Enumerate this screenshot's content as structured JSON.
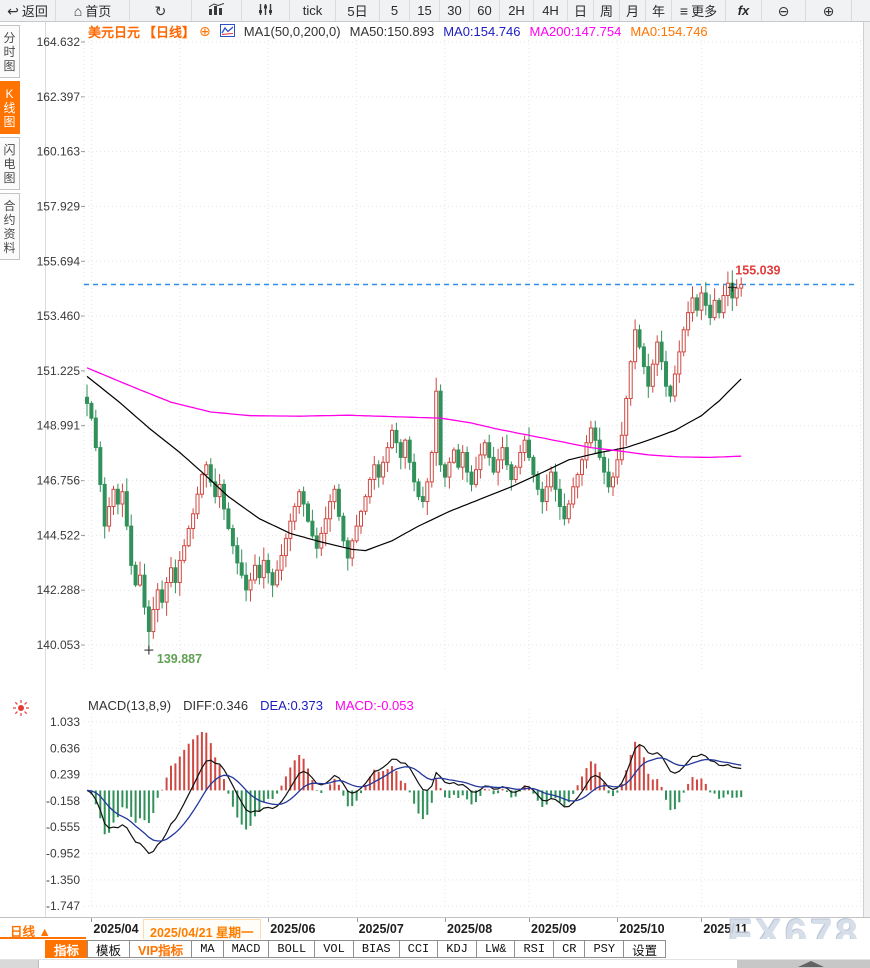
{
  "icons": {
    "back": "↩",
    "home": "⌂",
    "refresh": "↻",
    "more": "≡",
    "zoom_out": "⊖",
    "zoom_in": "⊕",
    "add": "⊕",
    "dropdown_arrow": "▲"
  },
  "topbar": {
    "items": [
      {
        "name": "tool-back",
        "icon": "back",
        "label": "返回"
      },
      {
        "name": "tool-home",
        "icon": "home",
        "label": "首页"
      },
      {
        "name": "tool-refresh",
        "icon": "refresh",
        "label": ""
      },
      {
        "name": "tool-chart-style",
        "icon": "chart",
        "label": ""
      },
      {
        "name": "tool-indicator-settings",
        "icon": "sliders",
        "label": ""
      },
      {
        "name": "period-tick",
        "label": "tick"
      },
      {
        "name": "period-5day",
        "label": "5日"
      },
      {
        "name": "period-5min",
        "label": "5"
      },
      {
        "name": "period-15min",
        "label": "15"
      },
      {
        "name": "period-30min",
        "label": "30"
      },
      {
        "name": "period-60min",
        "label": "60"
      },
      {
        "name": "period-2h",
        "label": "2H"
      },
      {
        "name": "period-4h",
        "label": "4H"
      },
      {
        "name": "period-day",
        "label": "日"
      },
      {
        "name": "period-week",
        "label": "周"
      },
      {
        "name": "period-month",
        "label": "月"
      },
      {
        "name": "period-year",
        "label": "年"
      },
      {
        "name": "tool-more",
        "icon": "more",
        "label": "更多"
      },
      {
        "name": "tool-fx",
        "label": "fx"
      },
      {
        "name": "tool-zoom-out",
        "icon": "zoom_out",
        "label": ""
      },
      {
        "name": "tool-zoom-in",
        "icon": "zoom_in",
        "label": ""
      }
    ]
  },
  "sidebar": {
    "tabs": [
      {
        "name": "tab-time-chart",
        "label": "分时图",
        "active": false
      },
      {
        "name": "tab-kline-chart",
        "label": "K线图",
        "active": true
      },
      {
        "name": "tab-lightning-chart",
        "label": "闪电图",
        "active": false
      },
      {
        "name": "tab-contract-info",
        "label": "合约资料",
        "active": false
      }
    ]
  },
  "header": {
    "symbol": "美元日元",
    "period_tag": "【日线】",
    "ma_settings": "MA1(50,0,200,0)",
    "ma50": "MA50:150.893",
    "ma0_blue": "MA0:154.746",
    "ma200": "MA200:147.754",
    "ma0_orange": "MA0:154.746"
  },
  "macd_header": {
    "title": "MACD(13,8,9)",
    "diff": "DIFF:0.346",
    "dea": "DEA:0.373",
    "macd": "MACD:-0.053"
  },
  "bottom": {
    "period_label": "日线",
    "arrow": "▲"
  },
  "indicator_bar": {
    "items": [
      {
        "label": "指标",
        "style": "active"
      },
      {
        "label": "模板",
        "style": ""
      },
      {
        "label": "VIP指标",
        "style": "viptxt"
      },
      {
        "label": "MA",
        "style": "mono"
      },
      {
        "label": "MACD",
        "style": "mono"
      },
      {
        "label": "BOLL",
        "style": "mono"
      },
      {
        "label": "VOL",
        "style": "mono"
      },
      {
        "label": "BIAS",
        "style": "mono"
      },
      {
        "label": "CCI",
        "style": "mono"
      },
      {
        "label": "KDJ",
        "style": "mono"
      },
      {
        "label": "LW&",
        "style": "mono"
      },
      {
        "label": "RSI",
        "style": "mono"
      },
      {
        "label": "CR",
        "style": "mono"
      },
      {
        "label": "PSY",
        "style": "mono"
      },
      {
        "label": "设置",
        "style": ""
      }
    ]
  },
  "watermark": "FX678",
  "colors": {
    "up_candle": "#cf4842",
    "down_candle": "#31915a",
    "ma50_line": "#000000",
    "ma200_line": "#ff00e8",
    "price_line": "#2f8fe8",
    "dea_line": "#24389b",
    "accent_orange": "#ff7300",
    "high_label": "#e23b3b",
    "low_label": "#61a054"
  },
  "chart_data": {
    "type": "candlestick+macd",
    "symbol": "美元日元",
    "period": "日线",
    "y_axis": {
      "labels": [
        "164.632",
        "162.397",
        "160.163",
        "157.929",
        "155.694",
        "153.460",
        "151.225",
        "148.991",
        "146.756",
        "144.522",
        "142.288",
        "140.053"
      ]
    },
    "current_price": 154.746,
    "candles": {
      "first_open": 150.15,
      "closes": [
        149.9,
        149.3,
        148.1,
        146.6,
        144.9,
        145.7,
        146.4,
        145.8,
        146.3,
        144.9,
        143.3,
        142.5,
        142.9,
        141.6,
        140.6,
        141.5,
        142.3,
        141.8,
        142.6,
        143.2,
        142.6,
        143.5,
        144.1,
        144.8,
        145.4,
        146.2,
        147.0,
        147.4,
        146.7,
        146.1,
        146.6,
        145.6,
        144.8,
        144.1,
        143.4,
        142.9,
        142.3,
        142.7,
        143.3,
        142.8,
        143.5,
        143.0,
        142.5,
        143.1,
        143.7,
        144.4,
        145.1,
        145.7,
        146.3,
        145.8,
        145.1,
        144.5,
        144.0,
        144.6,
        145.2,
        145.9,
        146.4,
        145.3,
        144.3,
        143.6,
        144.3,
        144.9,
        145.5,
        146.1,
        146.8,
        147.4,
        146.9,
        147.5,
        148.1,
        148.8,
        148.3,
        147.7,
        148.4,
        147.5,
        146.7,
        146.1,
        145.9,
        146.7,
        147.9,
        150.4,
        147.4,
        146.9,
        147.5,
        148.0,
        147.3,
        147.9,
        147.1,
        146.6,
        147.2,
        147.8,
        148.3,
        147.7,
        147.1,
        147.6,
        148.1,
        147.4,
        146.8,
        147.3,
        147.9,
        148.4,
        147.7,
        147.0,
        146.4,
        145.9,
        146.5,
        147.1,
        146.4,
        145.7,
        145.2,
        145.8,
        146.5,
        147.0,
        147.6,
        148.3,
        148.9,
        148.4,
        147.7,
        147.1,
        146.5,
        146.9,
        147.6,
        148.6,
        150.1,
        151.6,
        152.9,
        152.2,
        151.4,
        150.6,
        151.5,
        152.4,
        151.6,
        150.6,
        150.2,
        151.1,
        152.0,
        152.9,
        153.6,
        154.2,
        153.7,
        154.4,
        153.9,
        153.4,
        154.1,
        153.6,
        154.3,
        154.8,
        154.2,
        154.6,
        154.75
      ],
      "low_marker": {
        "index": 14,
        "price": 139.887,
        "label": "139.887"
      },
      "high_marker": {
        "index": 148,
        "price": 155.039,
        "label": "155.039"
      },
      "spikes": [
        {
          "index": 79,
          "high": 150.95
        }
      ]
    },
    "ma50_anchors": [
      [
        0,
        151.0
      ],
      [
        7,
        150.0
      ],
      [
        14,
        148.9
      ],
      [
        21,
        147.9
      ],
      [
        26,
        147.1
      ],
      [
        32,
        146.1
      ],
      [
        39,
        145.2
      ],
      [
        46,
        144.6
      ],
      [
        53,
        144.25
      ],
      [
        60,
        143.95
      ],
      [
        63,
        143.9
      ],
      [
        69,
        144.3
      ],
      [
        75,
        144.9
      ],
      [
        82,
        145.5
      ],
      [
        89,
        146.0
      ],
      [
        96,
        146.5
      ],
      [
        102,
        147.0
      ],
      [
        109,
        147.6
      ],
      [
        116,
        147.9
      ],
      [
        122,
        148.1
      ],
      [
        127,
        148.4
      ],
      [
        133,
        148.8
      ],
      [
        139,
        149.4
      ],
      [
        143,
        150.0
      ],
      [
        148,
        150.9
      ]
    ],
    "ma200_anchors": [
      [
        0,
        151.35
      ],
      [
        10,
        150.6
      ],
      [
        19,
        149.95
      ],
      [
        28,
        149.55
      ],
      [
        37,
        149.4
      ],
      [
        48,
        149.38
      ],
      [
        59,
        149.42
      ],
      [
        71,
        149.35
      ],
      [
        80,
        149.3
      ],
      [
        87,
        149.1
      ],
      [
        93,
        148.85
      ],
      [
        100,
        148.6
      ],
      [
        107,
        148.35
      ],
      [
        114,
        148.1
      ],
      [
        121,
        147.95
      ],
      [
        127,
        147.8
      ],
      [
        134,
        147.72
      ],
      [
        141,
        147.7
      ],
      [
        148,
        147.75
      ]
    ],
    "x_axis": {
      "labels": [
        {
          "text": "2025/04",
          "index": 1
        },
        {
          "text": "2025/06",
          "index": 41
        },
        {
          "text": "2025/07",
          "index": 61
        },
        {
          "text": "2025/08",
          "index": 81
        },
        {
          "text": "2025/09",
          "index": 100
        },
        {
          "text": "2025/10",
          "index": 120
        },
        {
          "text": "2025/11",
          "index": 139
        }
      ],
      "selected": {
        "text": "2025/04/21 星期一",
        "index": 13
      },
      "gridline_indices": [
        1,
        21,
        41,
        61,
        81,
        100,
        120,
        139
      ]
    },
    "macd": {
      "y_labels": [
        "1.033",
        "0.636",
        "0.239",
        "-0.158",
        "-0.555",
        "-0.952",
        "-1.350",
        "-1.747"
      ],
      "diff_value": 0.346,
      "dea_value": 0.373,
      "bar_value": -0.053
    }
  }
}
